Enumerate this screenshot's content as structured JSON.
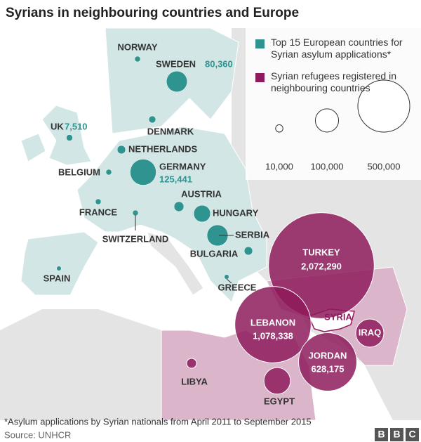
{
  "title": "Syrians in neighbouring countries and Europe",
  "legend": {
    "items": [
      {
        "text": "Top 15 European countries for Syrian asylum applications*",
        "color": "#2f938f"
      },
      {
        "text": "Syrian refugees registered in neighbouring countries",
        "color": "#8e1b5d"
      }
    ],
    "sizes": [
      {
        "value": 10000,
        "label": "10,000"
      },
      {
        "value": 100000,
        "label": "100,000"
      },
      {
        "value": 500000,
        "label": "500,000"
      }
    ]
  },
  "europe": [
    {
      "label": "NORWAY",
      "value": 6000
    },
    {
      "label": "SWEDEN",
      "value": 80360,
      "value_label": "80,360"
    },
    {
      "label": "DENMARK",
      "value": 9000
    },
    {
      "label": "UK",
      "value": 7510,
      "value_label": "7,510"
    },
    {
      "label": "NETHERLANDS",
      "value": 13000
    },
    {
      "label": "BELGIUM",
      "value": 6000
    },
    {
      "label": "GERMANY",
      "value": 125441,
      "value_label": "125,441"
    },
    {
      "label": "FRANCE",
      "value": 6000
    },
    {
      "label": "SWITZERLAND",
      "value": 6000
    },
    {
      "label": "AUSTRIA",
      "value": 18000
    },
    {
      "label": "HUNGARY",
      "value": 52000
    },
    {
      "label": "SERBIA",
      "value": 82000
    },
    {
      "label": "BULGARIA",
      "value": 13000
    },
    {
      "label": "GREECE",
      "value": 4000
    },
    {
      "label": "SPAIN",
      "value": 4000
    }
  ],
  "neighbours": [
    {
      "label": "TURKEY",
      "value": 2072290,
      "value_label": "2,072,290"
    },
    {
      "label": "LEBANON",
      "value": 1078338,
      "value_label": "1,078,338"
    },
    {
      "label": "IRAQ",
      "value": 146000
    },
    {
      "label": "JORDAN",
      "value": 628175,
      "value_label": "628,175"
    },
    {
      "label": "EGYPT",
      "value": 130000
    },
    {
      "label": "LIBYA",
      "value": 18000
    }
  ],
  "syria_label": "SYRIA",
  "footnote": "*Asylum applications by Syrian nationals from April 2011 to September 2015",
  "source": "Source: UNHCR",
  "logo": [
    "B",
    "B",
    "C"
  ]
}
